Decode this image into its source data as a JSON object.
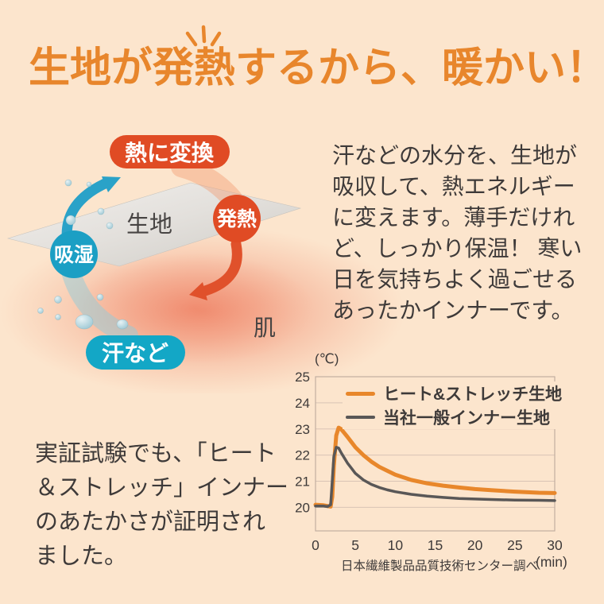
{
  "page": {
    "background": "#FCE5CD"
  },
  "header": {
    "title": "生地が発熱するから、暖かい！",
    "accent": "#E8862C"
  },
  "icons": {
    "sparkle": "sparkle-rays-icon",
    "moisture_arrow": "up-curved-arrow-icon",
    "heat_arrow": "down-curved-arrow-icon"
  },
  "diagram": {
    "labels": {
      "convert": "熱に変換",
      "fabric": "生地",
      "heat": "発熱",
      "absorb": "吸湿",
      "sweat": "汗など",
      "skin": "肌"
    },
    "colors": {
      "hot": "#E04B24",
      "cool": "#1B9FC4",
      "cool2": "#13A7C6",
      "label_dark": "#474443"
    }
  },
  "paragraphs": {
    "right_lines": [
      "汗などの水分を、生地が",
      "吸収して、熱エネルギー",
      "に変えます。薄手だけれ",
      "ど、しっかり保温！ 寒い",
      "日を気持ちよく過ごせる",
      "あったかインナーです。"
    ],
    "bottom_left_lines": [
      "実証試験でも、「ヒート",
      "＆ストレッチ」インナー",
      "のあたかさが証明され",
      "ました。"
    ]
  },
  "chart_data": {
    "type": "line",
    "title": "",
    "xlabel": "(min)",
    "ylabel": "(℃)",
    "caption": "日本繊維製品品質技術センター調べ",
    "xlim": [
      0,
      30
    ],
    "ylim": [
      19.1,
      25
    ],
    "xticks": [
      0,
      5,
      10,
      15,
      20,
      25,
      30
    ],
    "yticks": [
      20,
      21,
      22,
      23,
      24,
      25
    ],
    "grid": true,
    "legend_position": "top-left-inside",
    "grid_color": "#D9C4B5",
    "axis_color": "#C2AFA1",
    "text_color": "#3E3A39",
    "x": [
      0,
      1,
      1.5,
      1.9,
      2.1,
      2.3,
      2.6,
      2.9,
      3.2,
      3.6,
      4,
      4.5,
      5,
      6,
      7,
      8,
      9,
      10,
      12,
      14,
      16,
      18,
      20,
      22,
      25,
      28,
      30
    ],
    "series": [
      {
        "name": "ヒート&ストレッチ生地",
        "color": "#E8872B",
        "width": 5,
        "values": [
          20.1,
          20.08,
          20.05,
          20.03,
          20.4,
          21.6,
          22.75,
          23.05,
          23.0,
          22.85,
          22.7,
          22.5,
          22.3,
          22.0,
          21.75,
          21.55,
          21.4,
          21.25,
          21.05,
          20.92,
          20.83,
          20.76,
          20.7,
          20.66,
          20.6,
          20.56,
          20.55
        ]
      },
      {
        "name": "当社一般インナー生地",
        "color": "#595757",
        "width": 3.5,
        "values": [
          20.05,
          20.05,
          20.03,
          20.1,
          21.0,
          21.95,
          22.3,
          22.27,
          22.1,
          21.9,
          21.7,
          21.5,
          21.3,
          21.05,
          20.88,
          20.76,
          20.67,
          20.6,
          20.5,
          20.43,
          20.38,
          20.34,
          20.32,
          20.3,
          20.28,
          20.27,
          20.26
        ]
      }
    ]
  }
}
